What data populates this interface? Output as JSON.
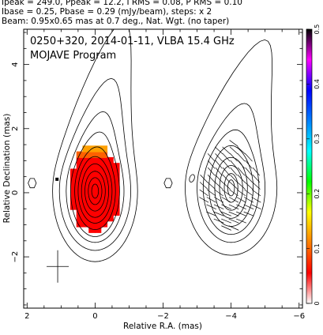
{
  "header": {
    "line1": "Ipeak = 249.0, Ppeak = 12.2, I RMS = 0.08, P RMS = 0.10",
    "line2": "Ibase = 0.25, Pbase = 0.29 (mJy/beam), steps: x 2",
    "line3": "Beam: 0.95x0.65 mas at 0.7 deg., Nat. Wgt. (no taper)"
  },
  "plot_label": {
    "line1": "0250+320, 2014-01-11, VLBA 15.4 GHz",
    "line2": "MOJAVE Program"
  },
  "chart_data": {
    "type": "heatmap",
    "xlabel": "Relative R.A. (mas)",
    "ylabel": "Relative Declination (mas)",
    "xlim": [
      2.1,
      -6.1
    ],
    "ylim": [
      -3.6,
      5.1
    ],
    "x_ticks": [
      2,
      0,
      -2,
      -4,
      -6
    ],
    "y_ticks": [
      -2,
      0,
      2,
      4
    ],
    "colorbar": {
      "range": [
        0,
        0.5
      ],
      "ticks": [
        0,
        0.1,
        0.2,
        0.3,
        0.4,
        0.5
      ],
      "colors": [
        "#ffffff",
        "#ff0000",
        "#ff8000",
        "#ffff00",
        "#00ff00",
        "#00ffff",
        "#0080ff",
        "#0000ff",
        "#ff00ff",
        "#000000"
      ]
    },
    "beam": {
      "major_mas": 0.95,
      "minor_mas": 0.65,
      "pa_deg": 0.7,
      "center": [
        1.1,
        -2.3
      ]
    },
    "core": {
      "ra": 0,
      "dec": 0
    },
    "contour_levels_mJy": [
      0.25,
      0.5,
      1,
      2,
      4,
      8,
      16,
      32,
      64,
      128
    ],
    "panels": [
      "total intensity with fractional polarization",
      "polarized intensity with EVPA ticks"
    ]
  }
}
